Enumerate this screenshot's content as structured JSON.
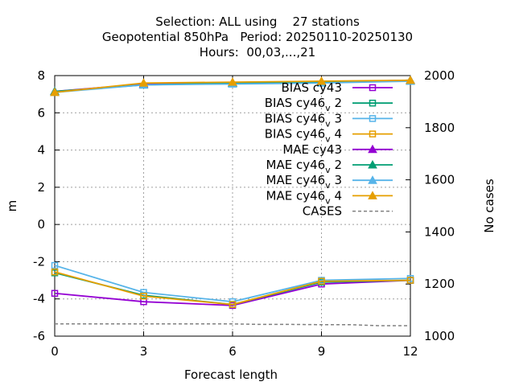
{
  "chart_data": {
    "type": "line",
    "title_lines": [
      "Selection: ALL using    27 stations",
      "Geopotential 850hPa   Period: 20250110-20250130",
      "Hours:  00,03,...,21"
    ],
    "xlabel": "Forecast length",
    "ylabel": "m",
    "y2label": "No cases",
    "x": [
      0,
      3,
      6,
      9,
      12
    ],
    "x_ticks": [
      "0",
      "3",
      "6",
      "9",
      "12"
    ],
    "xlim": [
      0,
      12
    ],
    "ylim": [
      -6,
      8
    ],
    "y_ticks": [
      "-6",
      "-4",
      "-2",
      "0",
      "2",
      "4",
      "6",
      "8"
    ],
    "y2lim": [
      1000,
      2000
    ],
    "y2_ticks": [
      "1000",
      "1200",
      "1400",
      "1600",
      "1800",
      "2000"
    ],
    "grid": true,
    "legend_position": "top-right",
    "series": [
      {
        "name": "BIAS cy43",
        "base": "BIAS cy46",
        "sub": "",
        "tail": "3",
        "plain": "BIAS cy43",
        "color": "#9400d3",
        "marker": "square-open",
        "axis": "y",
        "values": [
          -3.7,
          -4.15,
          -4.35,
          -3.2,
          -3.0
        ]
      },
      {
        "name": "BIAS cy46_v 2",
        "base": "BIAS cy46",
        "sub": "v",
        "tail": " 2",
        "plain": "",
        "color": "#009e73",
        "marker": "square-open",
        "axis": "y",
        "values": [
          -2.6,
          -3.8,
          -4.3,
          -3.1,
          -3.0
        ]
      },
      {
        "name": "BIAS cy46_v 3",
        "base": "BIAS cy46",
        "sub": "v",
        "tail": " 3",
        "plain": "",
        "color": "#56b4e9",
        "marker": "square-open",
        "axis": "y",
        "values": [
          -2.2,
          -3.65,
          -4.15,
          -3.0,
          -2.9
        ]
      },
      {
        "name": "BIAS cy46_v 4",
        "base": "BIAS cy46",
        "sub": "v",
        "tail": " 4",
        "plain": "",
        "color": "#e69f00",
        "marker": "square-open",
        "axis": "y",
        "values": [
          -2.55,
          -3.85,
          -4.3,
          -3.05,
          -3.0
        ]
      },
      {
        "name": "MAE cy43",
        "base": "MAE cy43",
        "sub": "",
        "tail": "",
        "plain": "MAE cy43",
        "color": "#9400d3",
        "marker": "triangle-filled",
        "axis": "y",
        "values": [
          7.15,
          7.55,
          7.6,
          7.65,
          7.75
        ]
      },
      {
        "name": "MAE cy46_v 2",
        "base": "MAE cy46",
        "sub": "v",
        "tail": " 2",
        "plain": "",
        "color": "#009e73",
        "marker": "triangle-filled",
        "axis": "y",
        "values": [
          7.15,
          7.5,
          7.6,
          7.65,
          7.75
        ]
      },
      {
        "name": "MAE cy46_v 3",
        "base": "MAE cy46",
        "sub": "v",
        "tail": " 3",
        "plain": "",
        "color": "#56b4e9",
        "marker": "triangle-filled",
        "axis": "y",
        "values": [
          7.1,
          7.5,
          7.55,
          7.6,
          7.7
        ]
      },
      {
        "name": "MAE cy46_v 4",
        "base": "MAE cy46",
        "sub": "v",
        "tail": " 4",
        "plain": "",
        "color": "#e69f00",
        "marker": "triangle-filled",
        "axis": "y",
        "values": [
          7.1,
          7.6,
          7.65,
          7.7,
          7.75
        ]
      },
      {
        "name": "CASES",
        "base": "CASES",
        "sub": "",
        "tail": "",
        "plain": "CASES",
        "color": "#808080",
        "marker": "none",
        "dashed": true,
        "axis": "y2",
        "x": [
          0,
          1,
          2,
          3,
          4,
          5,
          6,
          7,
          8,
          9,
          10,
          11,
          12
        ],
        "values": [
          1047,
          1047,
          1047,
          1047,
          1047,
          1047,
          1047,
          1045,
          1045,
          1044,
          1044,
          1040,
          1040
        ]
      }
    ]
  }
}
